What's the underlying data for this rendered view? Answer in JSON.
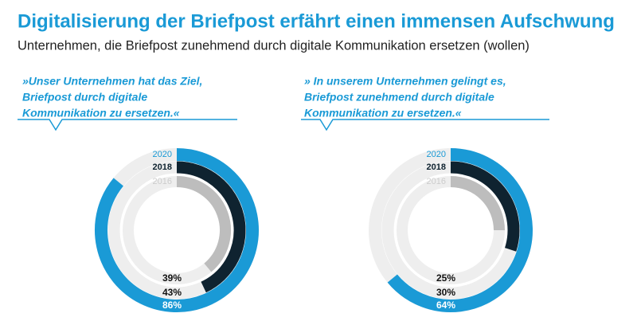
{
  "header": {
    "title": "Digitalisierung der Briefpost erfährt einen immensen Aufschwung",
    "subtitle": "Unternehmen, die Briefpost zunehmend durch digitale Kommunikation ersetzen (wollen)"
  },
  "chart_data": [
    {
      "type": "radial_bar",
      "quote": [
        "»Unser Unternehmen hat das Ziel,",
        "Briefpost durch digitale",
        "Kommunikation zu ersetzen.«"
      ],
      "ylim": [
        0,
        100
      ],
      "series": [
        {
          "name": "2020",
          "color": "#1a9ad6",
          "values": [
            86
          ],
          "value_labels": [
            "86%"
          ]
        },
        {
          "name": "2018",
          "color": "#0f2330",
          "values": [
            43
          ],
          "value_labels": [
            "43%"
          ]
        },
        {
          "name": "2016",
          "color": "#bdbdbd",
          "values": [
            39
          ],
          "value_labels": [
            "39%"
          ]
        }
      ]
    },
    {
      "type": "radial_bar",
      "quote": [
        "» In unserem Unternehmen gelingt es,",
        "Briefpost zunehmend durch digitale",
        "Kommunikation zu ersetzen.«"
      ],
      "ylim": [
        0,
        100
      ],
      "series": [
        {
          "name": "2020",
          "color": "#1a9ad6",
          "values": [
            64
          ],
          "value_labels": [
            "64%"
          ]
        },
        {
          "name": "2018",
          "color": "#0f2330",
          "values": [
            30
          ],
          "value_labels": [
            "30%"
          ]
        },
        {
          "name": "2016",
          "color": "#bdbdbd",
          "values": [
            25
          ],
          "value_labels": [
            "25%"
          ]
        }
      ]
    }
  ]
}
